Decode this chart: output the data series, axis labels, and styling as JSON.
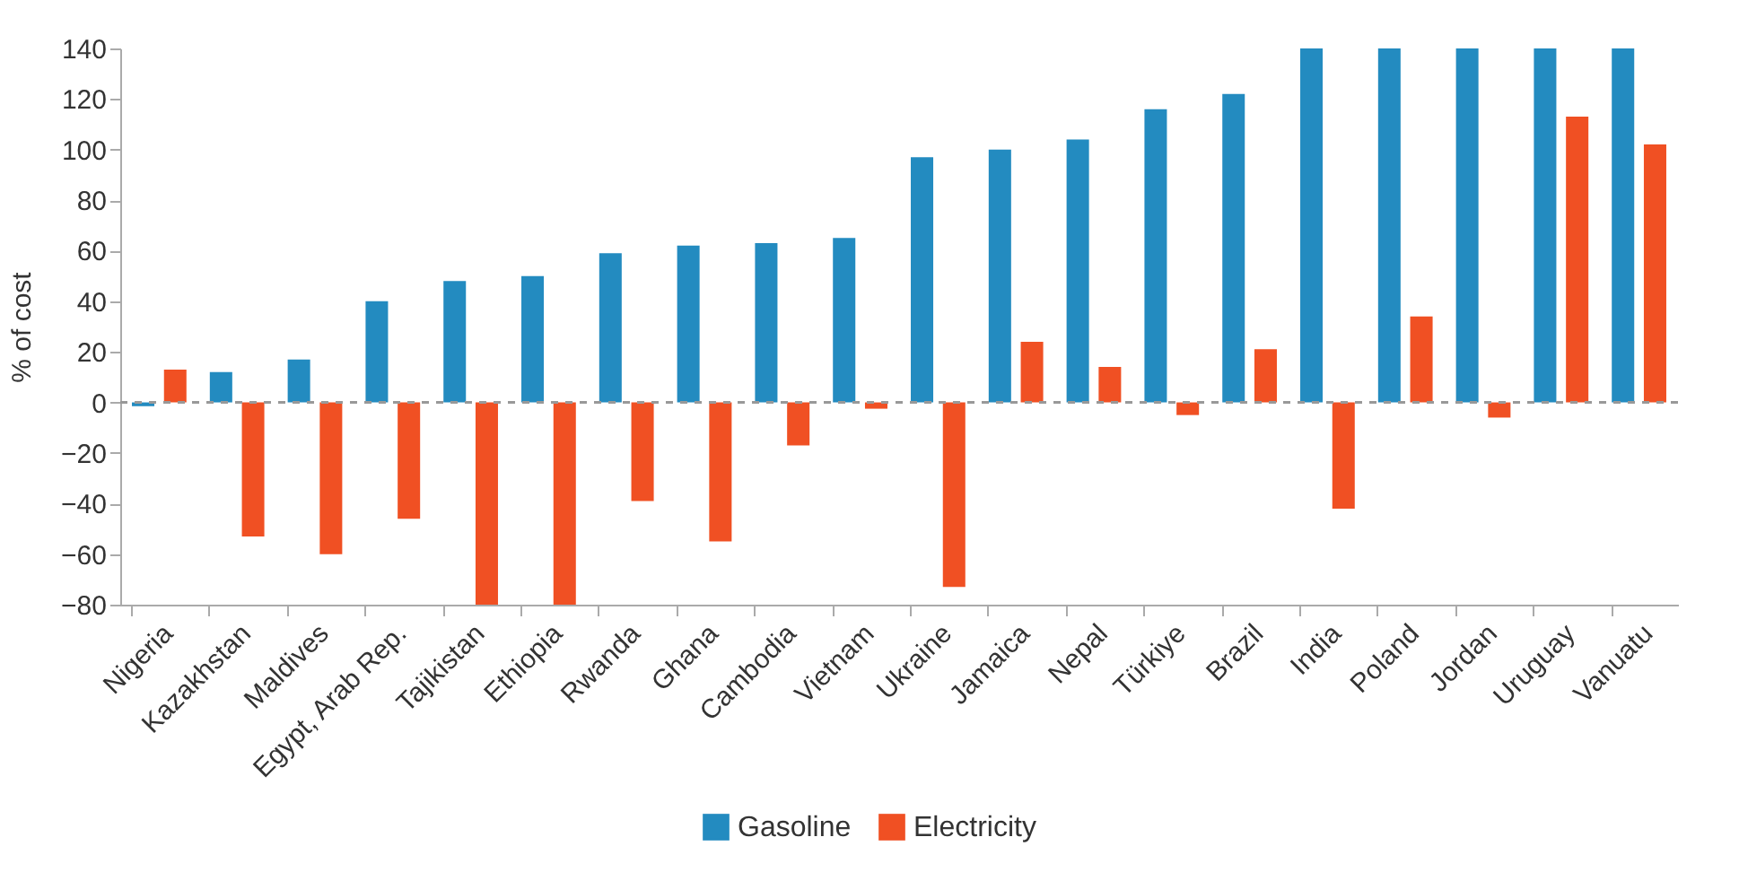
{
  "chart_data": {
    "type": "bar",
    "ylabel": "% of cost",
    "categories": [
      "Nigeria",
      "Kazakhstan",
      "Maldives",
      "Egypt, Arab Rep.",
      "Tajikistan",
      "Ethiopia",
      "Rwanda",
      "Ghana",
      "Cambodia",
      "Vietnam",
      "Ukraine",
      "Jamaica",
      "Nepal",
      "Türkiye",
      "Brazil",
      "India",
      "Poland",
      "Jordan",
      "Uruguay",
      "Vanuatu"
    ],
    "series": [
      {
        "name": "Gasoline",
        "color": "#238bc0",
        "values": [
          -1.5,
          12,
          17,
          40,
          48,
          50,
          59,
          62,
          63,
          65,
          97,
          100,
          104,
          116,
          122,
          140,
          140,
          140,
          140,
          140
        ]
      },
      {
        "name": "Electricity",
        "color": "#f05023",
        "values": [
          13,
          -53,
          -60,
          -46,
          -80,
          -80,
          -39,
          -55,
          -17,
          -2.5,
          -73,
          24,
          14,
          -5,
          21,
          -42,
          34,
          -6,
          113,
          102
        ]
      }
    ],
    "ylim": [
      -80,
      140
    ],
    "yticks": [
      -80,
      -60,
      -40,
      -20,
      0,
      20,
      40,
      60,
      80,
      100,
      120,
      140
    ],
    "ref_lines": [
      {
        "axis": "y",
        "value": 0,
        "line_style": "dashed",
        "color": "#999999"
      }
    ],
    "grid": false,
    "legend": "bottom"
  }
}
